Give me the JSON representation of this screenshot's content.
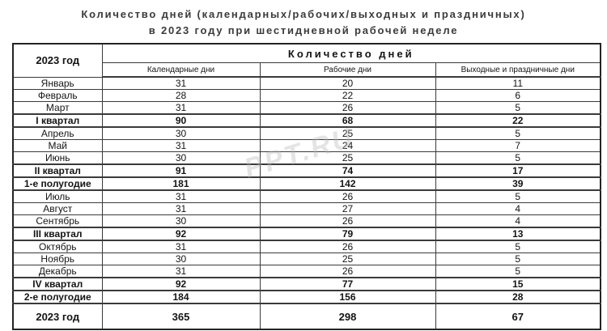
{
  "title": {
    "line1": "Количество дней (календарных/рабочих/выходных и праздничных)",
    "line2": "в 2023 году при шестидневной рабочей неделе"
  },
  "watermark": "PPT.RU",
  "table": {
    "corner_header": "2023 год",
    "group_header": "Количество дней",
    "columns": [
      "Календарные дни",
      "Рабочие дни",
      "Выходные и праздничные дни"
    ],
    "rows": [
      {
        "label": "Январь",
        "type": "month",
        "calendar": "31",
        "working": "20",
        "weekend": "11"
      },
      {
        "label": "Февраль",
        "type": "month",
        "calendar": "28",
        "working": "22",
        "weekend": "6"
      },
      {
        "label": "Март",
        "type": "month",
        "calendar": "31",
        "working": "26",
        "weekend": "5"
      },
      {
        "label": "I квартал",
        "type": "quarter",
        "calendar": "90",
        "working": "68",
        "weekend": "22"
      },
      {
        "label": "Апрель",
        "type": "month",
        "calendar": "30",
        "working": "25",
        "weekend": "5"
      },
      {
        "label": "Май",
        "type": "month",
        "calendar": "31",
        "working": "24",
        "weekend": "7"
      },
      {
        "label": "Июнь",
        "type": "month",
        "calendar": "30",
        "working": "25",
        "weekend": "5"
      },
      {
        "label": "II квартал",
        "type": "quarter",
        "calendar": "91",
        "working": "74",
        "weekend": "17"
      },
      {
        "label": "1-е полугодие",
        "type": "halfyear",
        "calendar": "181",
        "working": "142",
        "weekend": "39"
      },
      {
        "label": "Июль",
        "type": "month",
        "calendar": "31",
        "working": "26",
        "weekend": "5"
      },
      {
        "label": "Август",
        "type": "month",
        "calendar": "31",
        "working": "27",
        "weekend": "4"
      },
      {
        "label": "Сентябрь",
        "type": "month",
        "calendar": "30",
        "working": "26",
        "weekend": "4"
      },
      {
        "label": "III квартал",
        "type": "quarter",
        "calendar": "92",
        "working": "79",
        "weekend": "13"
      },
      {
        "label": "Октябрь",
        "type": "month",
        "calendar": "31",
        "working": "26",
        "weekend": "5"
      },
      {
        "label": "Ноябрь",
        "type": "month",
        "calendar": "30",
        "working": "25",
        "weekend": "5"
      },
      {
        "label": "Декабрь",
        "type": "month",
        "calendar": "31",
        "working": "26",
        "weekend": "5"
      },
      {
        "label": "IV квартал",
        "type": "quarter",
        "calendar": "92",
        "working": "77",
        "weekend": "15"
      },
      {
        "label": "2-е полугодие",
        "type": "halfyear",
        "calendar": "184",
        "working": "156",
        "weekend": "28"
      },
      {
        "label": "2023 год",
        "type": "year",
        "calendar": "365",
        "working": "298",
        "weekend": "67"
      }
    ]
  },
  "chart_data": {
    "type": "table",
    "title": "Количество дней в 2023 году при шестидневной рабочей неделе",
    "columns": [
      "2023 год",
      "Календарные дни",
      "Рабочие дни",
      "Выходные и праздничные дни"
    ],
    "rows": [
      [
        "Январь",
        31,
        20,
        11
      ],
      [
        "Февраль",
        28,
        22,
        6
      ],
      [
        "Март",
        31,
        26,
        5
      ],
      [
        "I квартал",
        90,
        68,
        22
      ],
      [
        "Апрель",
        30,
        25,
        5
      ],
      [
        "Май",
        31,
        24,
        7
      ],
      [
        "Июнь",
        30,
        25,
        5
      ],
      [
        "II квартал",
        91,
        74,
        17
      ],
      [
        "1-е полугодие",
        181,
        142,
        39
      ],
      [
        "Июль",
        31,
        26,
        5
      ],
      [
        "Август",
        31,
        27,
        4
      ],
      [
        "Сентябрь",
        30,
        26,
        4
      ],
      [
        "III квартал",
        92,
        79,
        13
      ],
      [
        "Октябрь",
        31,
        26,
        5
      ],
      [
        "Ноябрь",
        30,
        25,
        5
      ],
      [
        "Декабрь",
        31,
        26,
        5
      ],
      [
        "IV квартал",
        92,
        77,
        15
      ],
      [
        "2-е полугодие",
        184,
        156,
        28
      ],
      [
        "2023 год",
        365,
        298,
        67
      ]
    ]
  }
}
